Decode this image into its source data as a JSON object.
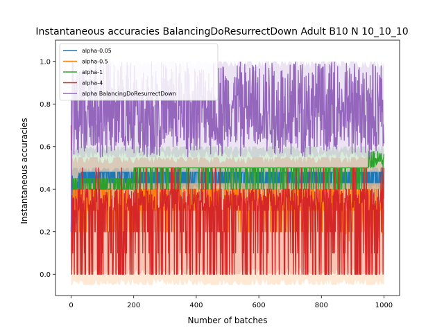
{
  "chart_data": {
    "type": "line",
    "title": "Instantaneous accuracies BalancingDoResurrectDown Adult B10 N 10_10_10",
    "xlabel": "Number of batches",
    "ylabel": "Instantaneous accuracies",
    "xlim": [
      -50,
      1050
    ],
    "ylim": [
      -0.1,
      1.1
    ],
    "x_ticks": [
      0,
      200,
      400,
      600,
      800,
      1000
    ],
    "x_tick_labels": [
      "0",
      "200",
      "400",
      "600",
      "800",
      "1000"
    ],
    "y_ticks": [
      0.0,
      0.2,
      0.4,
      0.6,
      0.8,
      1.0
    ],
    "y_tick_labels": [
      "0.0",
      "0.2",
      "0.4",
      "0.6",
      "0.8",
      "1.0"
    ],
    "grid": false,
    "legend_position": "top-left",
    "x_range": [
      0,
      1000
    ],
    "series": [
      {
        "name": "alpha-0.05",
        "color": "#1f77b4",
        "description_levels": [
          0.43,
          0.48
        ],
        "start": 0.2,
        "band": [
          0.4,
          0.5
        ]
      },
      {
        "name": "alpha-0.5",
        "color": "#ff7f0e",
        "description_levels": [
          0.3,
          0.42
        ],
        "start": 0.2,
        "band": [
          -0.05,
          0.45
        ]
      },
      {
        "name": "alpha-1",
        "color": "#2ca02c",
        "description_levels": [
          0.4,
          0.5
        ],
        "start": 0.2,
        "band": [
          0.35,
          0.6
        ]
      },
      {
        "name": "alpha-4",
        "color": "#d62728",
        "description_levels": [
          0.0,
          0.5
        ],
        "start": 0.7,
        "band": [
          0.0,
          0.55
        ]
      },
      {
        "name": "alpha BalancingDoResurrectDown",
        "color": "#9467bd",
        "description_levels": [
          0.6,
          1.0
        ],
        "start": 0.2,
        "band": [
          0.55,
          1.0
        ]
      }
    ]
  }
}
